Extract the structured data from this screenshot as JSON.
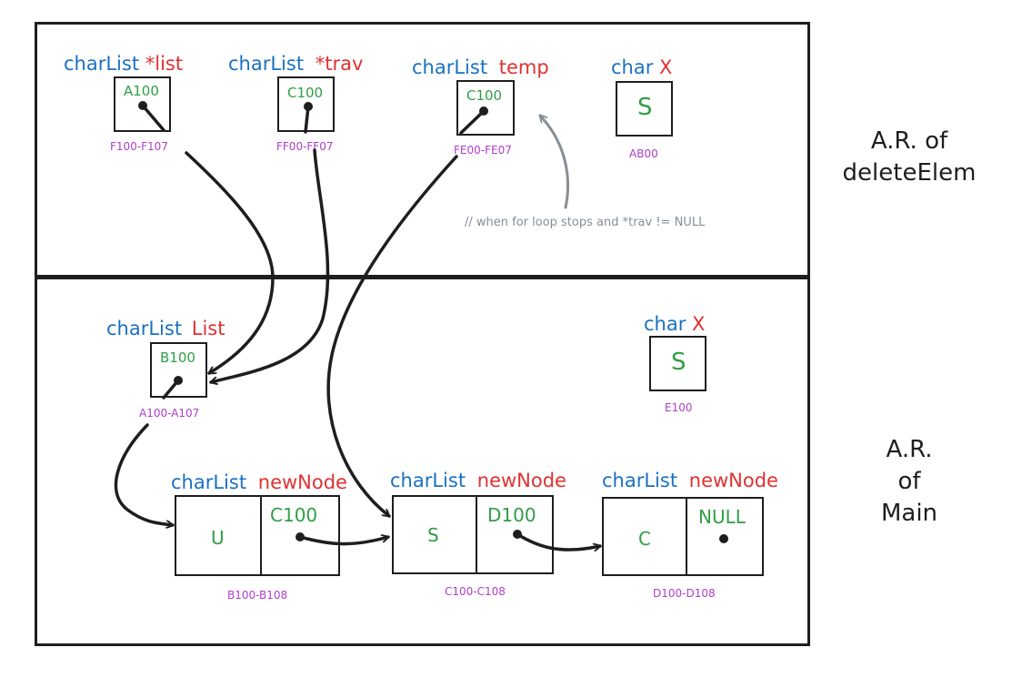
{
  "deleteElem": {
    "list": {
      "type": "charList",
      "name": "*list",
      "value": "A100",
      "address": "F100-F107"
    },
    "trav": {
      "type": "charList",
      "name": "*trav",
      "value": "C100",
      "address": "FF00-FF07"
    },
    "temp": {
      "type": "charList",
      "name": "temp",
      "value": "C100",
      "address": "FE00-FE07"
    },
    "x": {
      "type": "char",
      "name": "X",
      "value": "S",
      "address": "AB00"
    },
    "note": "// when for loop stops and *trav != NULL",
    "ar_label_line1": "A.R. of",
    "ar_label_line2": "deleteElem"
  },
  "main": {
    "list": {
      "type": "charList",
      "name": "List",
      "value": "B100",
      "address": "A100-A107"
    },
    "x": {
      "type": "char",
      "name": "X",
      "value": "S",
      "address": "E100"
    },
    "nodes": [
      {
        "type": "charList",
        "name": "newNode",
        "data": "U",
        "next": "C100",
        "address": "B100-B108"
      },
      {
        "type": "charList",
        "name": "newNode",
        "data": "S",
        "next": "D100",
        "address": "C100-C108"
      },
      {
        "type": "charList",
        "name": "newNode",
        "data": "C",
        "next": "NULL",
        "address": "D100-D108"
      }
    ],
    "ar_label_line1": "A.R.",
    "ar_label_line2": "of",
    "ar_label_line3": "Main"
  },
  "colors": {
    "type": "#1971c2",
    "name": "#e03131",
    "value": "#2f9e44",
    "address": "#ae3ec9",
    "note": "#868e96",
    "stroke": "#1e1e1e"
  }
}
